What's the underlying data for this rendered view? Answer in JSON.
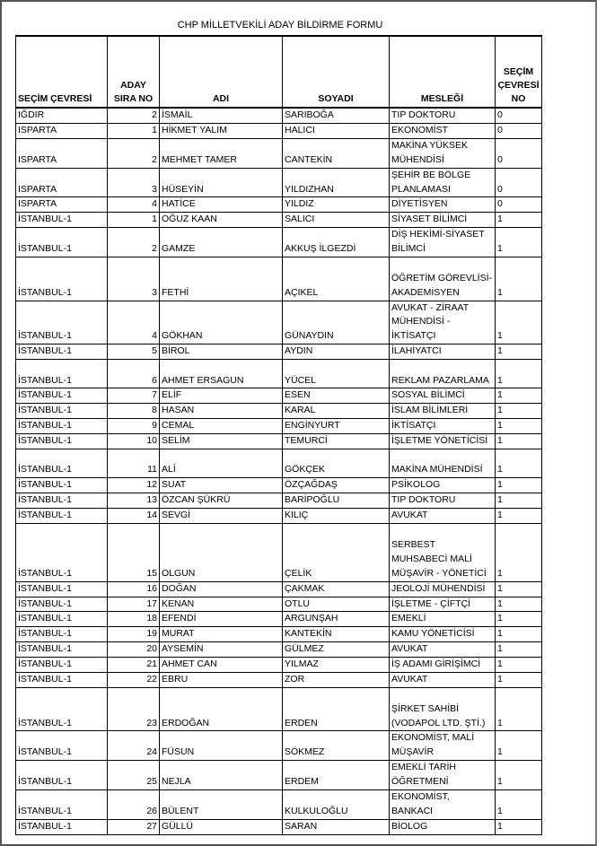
{
  "title": "CHP MİLLETVEKİLİ ADAY BİLDİRME FORMU",
  "table": {
    "header": [
      "SEÇİM ÇEVRESİ",
      [
        "ADAY",
        "SIRA NO"
      ],
      "ADI",
      "SOYADI",
      "MESLEĞİ",
      [
        "SEÇİM",
        "ÇEVRESİ",
        "NO"
      ]
    ],
    "rows": [
      [
        "IĞDIR",
        2,
        "İSMAİL",
        "SARIBOĞA",
        "TIP DOKTORU",
        0
      ],
      [
        "ISPARTA",
        1,
        "HİKMET YALIM",
        "HALICI",
        "EKONOMİST",
        0
      ],
      [
        "ISPARTA",
        2,
        "MEHMET TAMER",
        "CANTEKİN",
        "MAKİNA YÜKSEK MÜHENDİSİ",
        0
      ],
      [
        "ISPARTA",
        3,
        "HÜSEYİN",
        "YILDIZHAN",
        "ŞEHİR BE BÖLGE PLANLAMASI",
        0
      ],
      [
        "ISPARTA",
        4,
        "HATİCE",
        "YILDIZ",
        "DİYETİSYEN",
        0
      ],
      [
        "İSTANBUL-1",
        1,
        "OĞUZ KAAN",
        "SALICI",
        "SİYASET BİLİMCİ",
        1
      ],
      [
        "İSTANBUL-1",
        2,
        "GAMZE",
        "AKKUŞ İLGEZDİ",
        "DİŞ HEKİMİ-SİYASET BİLİMCİ",
        1
      ],
      [
        "İSTANBUL-1",
        3,
        "FETHİ",
        "AÇIKEL",
        "ÖĞRETİM GÖREVLİSİ-AKADEMİSYEN",
        1
      ],
      [
        "İSTANBUL-1",
        4,
        "GÖKHAN",
        "GÜNAYDIN",
        "AVUKAT - ZİRAAT MÜHENDİSİ - İKTİSATÇI",
        1
      ],
      [
        "İSTANBUL-1",
        5,
        "BİROL",
        "AYDIN",
        "İLAHİYATCI",
        1
      ],
      [
        "İSTANBUL-1",
        6,
        "AHMET ERSAGUN",
        "YÜCEL",
        "REKLAM PAZARLAMA",
        1
      ],
      [
        "İSTANBUL-1",
        7,
        "ELİF",
        "ESEN",
        "SOSYAL BİLİMCİ",
        1
      ],
      [
        "İSTANBUL-1",
        8,
        "HASAN",
        "KARAL",
        "İSLAM BİLİMLERİ",
        1
      ],
      [
        "İSTANBUL-1",
        9,
        "CEMAL",
        "ENGİNYURT",
        "İKTİSATÇI",
        1
      ],
      [
        "İSTANBUL-1",
        10,
        "SELİM",
        "TEMURCİ",
        "İŞLETME YÖNETİCİSİ",
        1
      ],
      [
        "İSTANBUL-1",
        11,
        "ALİ",
        "GÖKÇEK",
        "MAKİNA MÜHENDİSİ",
        1
      ],
      [
        "İSTANBUL-1",
        12,
        "SUAT",
        "ÖZÇAĞDAŞ",
        "PSİKOLOG",
        1
      ],
      [
        "İSTANBUL-1",
        13,
        "ÖZCAN ŞÜKRÜ",
        "BARİPOĞLU",
        "TIP DOKTORU",
        1
      ],
      [
        "İSTANBUL-1",
        14,
        "SEVGİ",
        "KILIÇ",
        "AVUKAT",
        1
      ],
      [
        "İSTANBUL-1",
        15,
        "OLGUN",
        "ÇELİK",
        "SERBEST MUHSABECİ MALİ MÜŞAVİR - YÖNETİCİ",
        1
      ],
      [
        "İSTANBUL-1",
        16,
        "DOĞAN",
        "ÇAKMAK",
        "JEOLOJİ MÜHENDİSİ",
        1
      ],
      [
        "İSTANBUL-1",
        17,
        "KENAN",
        "OTLU",
        "İŞLETME - ÇİFTÇİ",
        1
      ],
      [
        "İSTANBUL-1",
        18,
        "EFENDİ",
        "ARGUNŞAH",
        "EMEKLİ",
        1
      ],
      [
        "İSTANBUL-1",
        19,
        "MURAT",
        "KANTEKİN",
        "KAMU YÖNETİCİSİ",
        1
      ],
      [
        "İSTANBUL-1",
        20,
        "AYSEMİN",
        "GÜLMEZ",
        "AVUKAT",
        1
      ],
      [
        "İSTANBUL-1",
        21,
        "AHMET CAN",
        "YILMAZ",
        "İŞ ADAMI GİRİŞİMCİ",
        1
      ],
      [
        "İSTANBUL-1",
        22,
        "EBRU",
        "ZOR",
        "AVUKAT",
        1
      ],
      [
        "İSTANBUL-1",
        23,
        "ERDOĞAN",
        "ERDEN",
        "ŞİRKET SAHİBİ (VODAPOL LTD. ŞTİ.)",
        1
      ],
      [
        "İSTANBUL-1",
        24,
        "FÜSUN",
        "SÖKMEZ",
        "EKONOMİST, MALİ MÜŞAVİR",
        1
      ],
      [
        "İSTANBUL-1",
        25,
        "NEJLA",
        "ERDEM",
        "EMEKLİ TARİH ÖĞRETMENİ",
        1
      ],
      [
        "İSTANBUL-1",
        26,
        "BÜLENT",
        "KULKULOĞLU",
        "EKONOMİST, BANKACI",
        1
      ],
      [
        "İSTANBUL-1",
        27,
        "GÜLLÜ",
        "SARAN",
        "BİOLOG",
        1
      ]
    ]
  }
}
